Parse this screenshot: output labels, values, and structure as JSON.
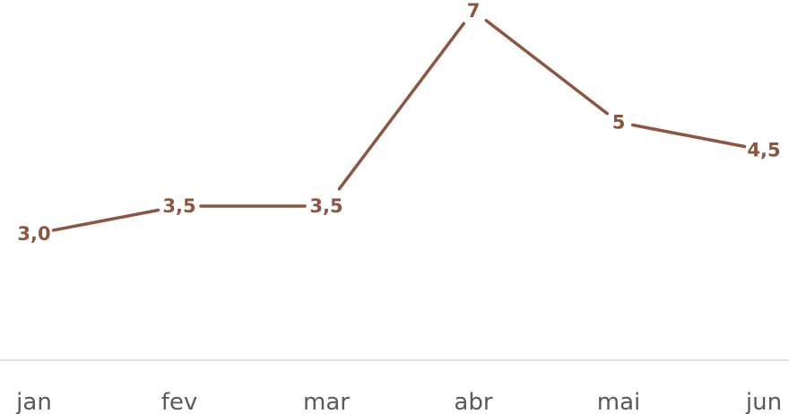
{
  "chart_data": {
    "type": "line",
    "categories": [
      "jan",
      "fev",
      "mar",
      "abr",
      "mai",
      "jun"
    ],
    "series": [
      {
        "values": [
          3.0,
          3.5,
          3.5,
          7,
          5,
          4.5
        ],
        "data_labels": [
          "3,0",
          "3,5",
          "3,5",
          "7",
          "5",
          "4,5"
        ],
        "color": "#8B5742"
      }
    ],
    "title": "",
    "xlabel": "",
    "ylabel": "",
    "grid": false,
    "legend": "none",
    "axis_color": "#D9D9D9",
    "tick_label_color": "#595959"
  }
}
